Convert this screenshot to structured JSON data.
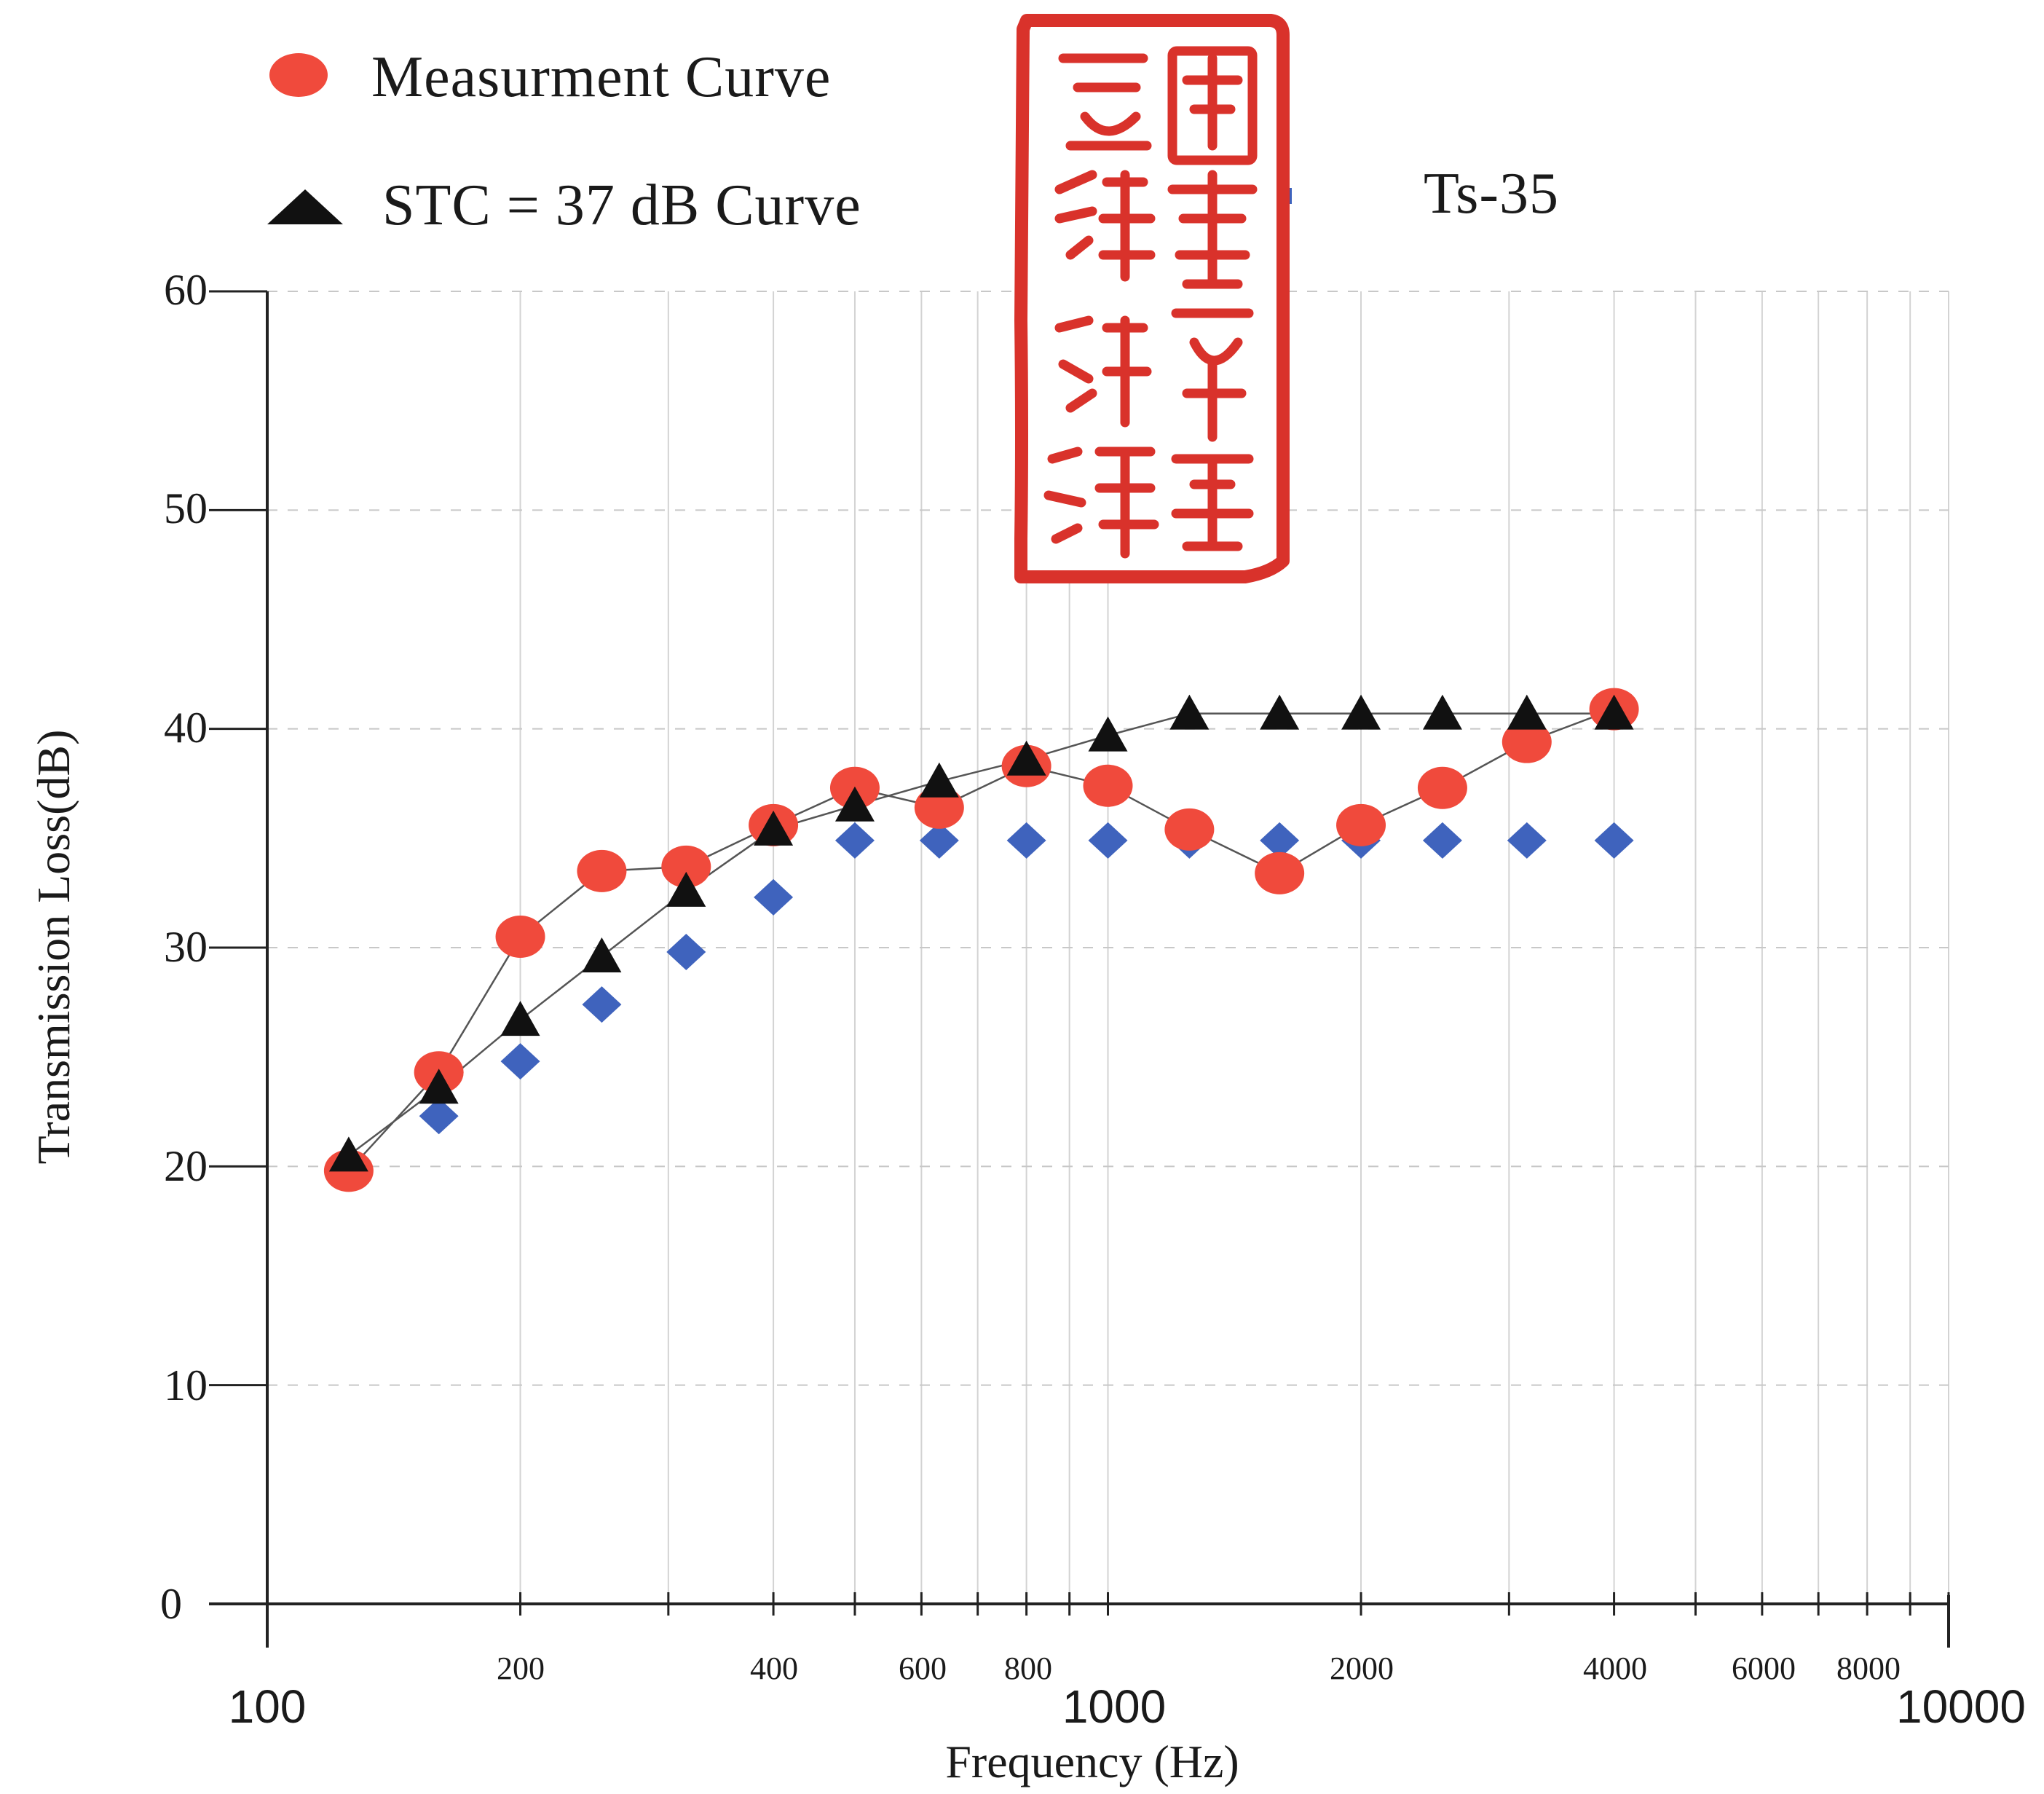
{
  "chart_data": {
    "type": "scatter",
    "xscale": "log",
    "xlim": [
      100,
      10000
    ],
    "ylim": [
      0,
      60
    ],
    "xlabel": "Frequency (Hz)",
    "ylabel": "Transmission Loss(dB)",
    "grid": true,
    "legend_position": "top-left",
    "yticks": [
      "0",
      "10",
      "20",
      "30",
      "40",
      "50",
      "60"
    ],
    "xticks_minor": [
      "200",
      "400",
      "600",
      "800",
      "2000",
      "4000",
      "6000",
      "8000"
    ],
    "xticks_major": [
      "100",
      "1000",
      "10000"
    ],
    "series": [
      {
        "name": "Measurment Curve",
        "marker": "circle",
        "color": "#f04a3c",
        "connect": true,
        "points": [
          [
            125,
            19.8
          ],
          [
            160,
            24.3
          ],
          [
            200,
            30.5
          ],
          [
            250,
            33.5
          ],
          [
            315,
            33.7
          ],
          [
            400,
            35.6
          ],
          [
            500,
            37.3
          ],
          [
            630,
            36.4
          ],
          [
            800,
            38.3
          ],
          [
            1000,
            37.4
          ],
          [
            1250,
            35.4
          ],
          [
            1600,
            33.4
          ],
          [
            2000,
            35.6
          ],
          [
            2500,
            37.3
          ],
          [
            3150,
            39.4
          ],
          [
            4000,
            40.9
          ]
        ]
      },
      {
        "name": "STC = 37 dB Curve",
        "marker": "triangle",
        "color": "#111111",
        "connect": true,
        "points": [
          [
            125,
            20.5
          ],
          [
            160,
            23.6
          ],
          [
            200,
            26.7
          ],
          [
            250,
            29.6
          ],
          [
            315,
            32.6
          ],
          [
            400,
            35.4
          ],
          [
            500,
            36.5
          ],
          [
            630,
            37.6
          ],
          [
            800,
            38.6
          ],
          [
            1000,
            39.7
          ],
          [
            1250,
            40.7
          ],
          [
            1600,
            40.7
          ],
          [
            2000,
            40.7
          ],
          [
            2500,
            40.7
          ],
          [
            3150,
            40.7
          ],
          [
            4000,
            40.7
          ]
        ]
      },
      {
        "name": "Ts-35",
        "marker": "diamond",
        "color": "#3f63bd",
        "connect": false,
        "points": [
          [
            125,
            20
          ],
          [
            160,
            22.3
          ],
          [
            200,
            24.8
          ],
          [
            250,
            27.4
          ],
          [
            315,
            29.8
          ],
          [
            400,
            32.3
          ],
          [
            500,
            34.9
          ],
          [
            630,
            34.9
          ],
          [
            800,
            34.9
          ],
          [
            1000,
            34.9
          ],
          [
            1250,
            34.9
          ],
          [
            1600,
            34.9
          ],
          [
            2000,
            34.9
          ],
          [
            2500,
            34.9
          ],
          [
            3150,
            34.9
          ],
          [
            4000,
            34.9
          ]
        ]
      }
    ]
  },
  "seal": {
    "color": "#d9322b",
    "lettering": "國立臺灣海洋大學"
  }
}
